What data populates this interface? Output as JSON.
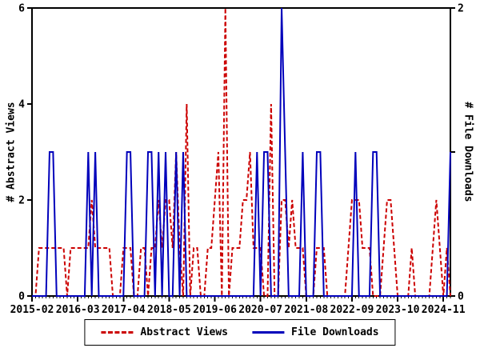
{
  "chart_data": {
    "type": "line",
    "title": "",
    "x_axis": {
      "start_month": "2015-02",
      "end_month": "2025-01",
      "tick_month_indices": [
        0,
        13,
        26,
        39,
        52,
        65,
        78,
        91,
        104,
        117
      ],
      "tick_labels": [
        "2015-02",
        "2016-03",
        "2017-04",
        "2018-05",
        "2019-06",
        "2020-07",
        "2021-08",
        "2022-09",
        "2023-10",
        "2024-11"
      ]
    },
    "left_axis": {
      "label": "# Abstract Views",
      "min": 0,
      "max": 6,
      "ticks": [
        0,
        2,
        4,
        6
      ]
    },
    "right_axis": {
      "label": "# File Downloads",
      "min": 0,
      "max": 2,
      "ticks": [
        0,
        1,
        2
      ],
      "labeled_ticks": [
        0,
        2
      ]
    },
    "grid": false,
    "legend_position": "bottom",
    "series": [
      {
        "name": "Abstract Views",
        "axis": "left",
        "color": "#cc0000",
        "style": "dashed",
        "values": [
          0,
          0,
          1,
          1,
          1,
          1,
          1,
          1,
          1,
          1,
          0,
          1,
          1,
          1,
          1,
          1,
          1,
          2,
          1,
          1,
          1,
          1,
          1,
          0,
          0,
          0,
          1,
          1,
          1,
          0,
          0,
          1,
          1,
          0,
          1,
          1,
          2,
          1,
          2,
          2,
          1,
          3,
          1,
          0,
          4,
          0,
          1,
          1,
          0,
          0,
          1,
          1,
          2,
          3,
          0,
          6,
          0,
          1,
          1,
          1,
          2,
          2,
          3,
          1,
          1,
          1,
          0,
          0,
          4,
          0,
          0,
          2,
          2,
          1,
          2,
          1,
          1,
          1,
          0,
          0,
          0,
          1,
          1,
          1,
          0,
          0,
          0,
          0,
          0,
          0,
          1,
          2,
          2,
          2,
          1,
          1,
          1,
          0,
          0,
          0,
          1,
          2,
          2,
          1,
          0,
          0,
          0,
          0,
          1,
          0,
          0,
          0,
          0,
          0,
          1,
          2,
          1,
          0,
          1,
          0
        ]
      },
      {
        "name": "File Downloads",
        "axis": "right",
        "color": "#0000bb",
        "style": "solid",
        "values": [
          0,
          0,
          0,
          0,
          0,
          1,
          1,
          0,
          0,
          0,
          0,
          0,
          0,
          0,
          0,
          0,
          1,
          0,
          1,
          0,
          0,
          0,
          0,
          0,
          0,
          0,
          0,
          1,
          1,
          0,
          0,
          0,
          0,
          1,
          1,
          0,
          1,
          0,
          1,
          0,
          0,
          1,
          0,
          1,
          0,
          0,
          0,
          0,
          0,
          0,
          0,
          0,
          0,
          0,
          0,
          0,
          0,
          0,
          0,
          0,
          0,
          0,
          0,
          0,
          1,
          0,
          1,
          1,
          0,
          0,
          0,
          2,
          1,
          0,
          0,
          0,
          0,
          1,
          0,
          0,
          0,
          1,
          1,
          0,
          0,
          0,
          0,
          0,
          0,
          0,
          0,
          0,
          1,
          0,
          0,
          0,
          0,
          1,
          1,
          0,
          0,
          0,
          0,
          0,
          0,
          0,
          0,
          0,
          0,
          0,
          0,
          0,
          0,
          0,
          0,
          0,
          0,
          0,
          0,
          1
        ]
      }
    ]
  }
}
